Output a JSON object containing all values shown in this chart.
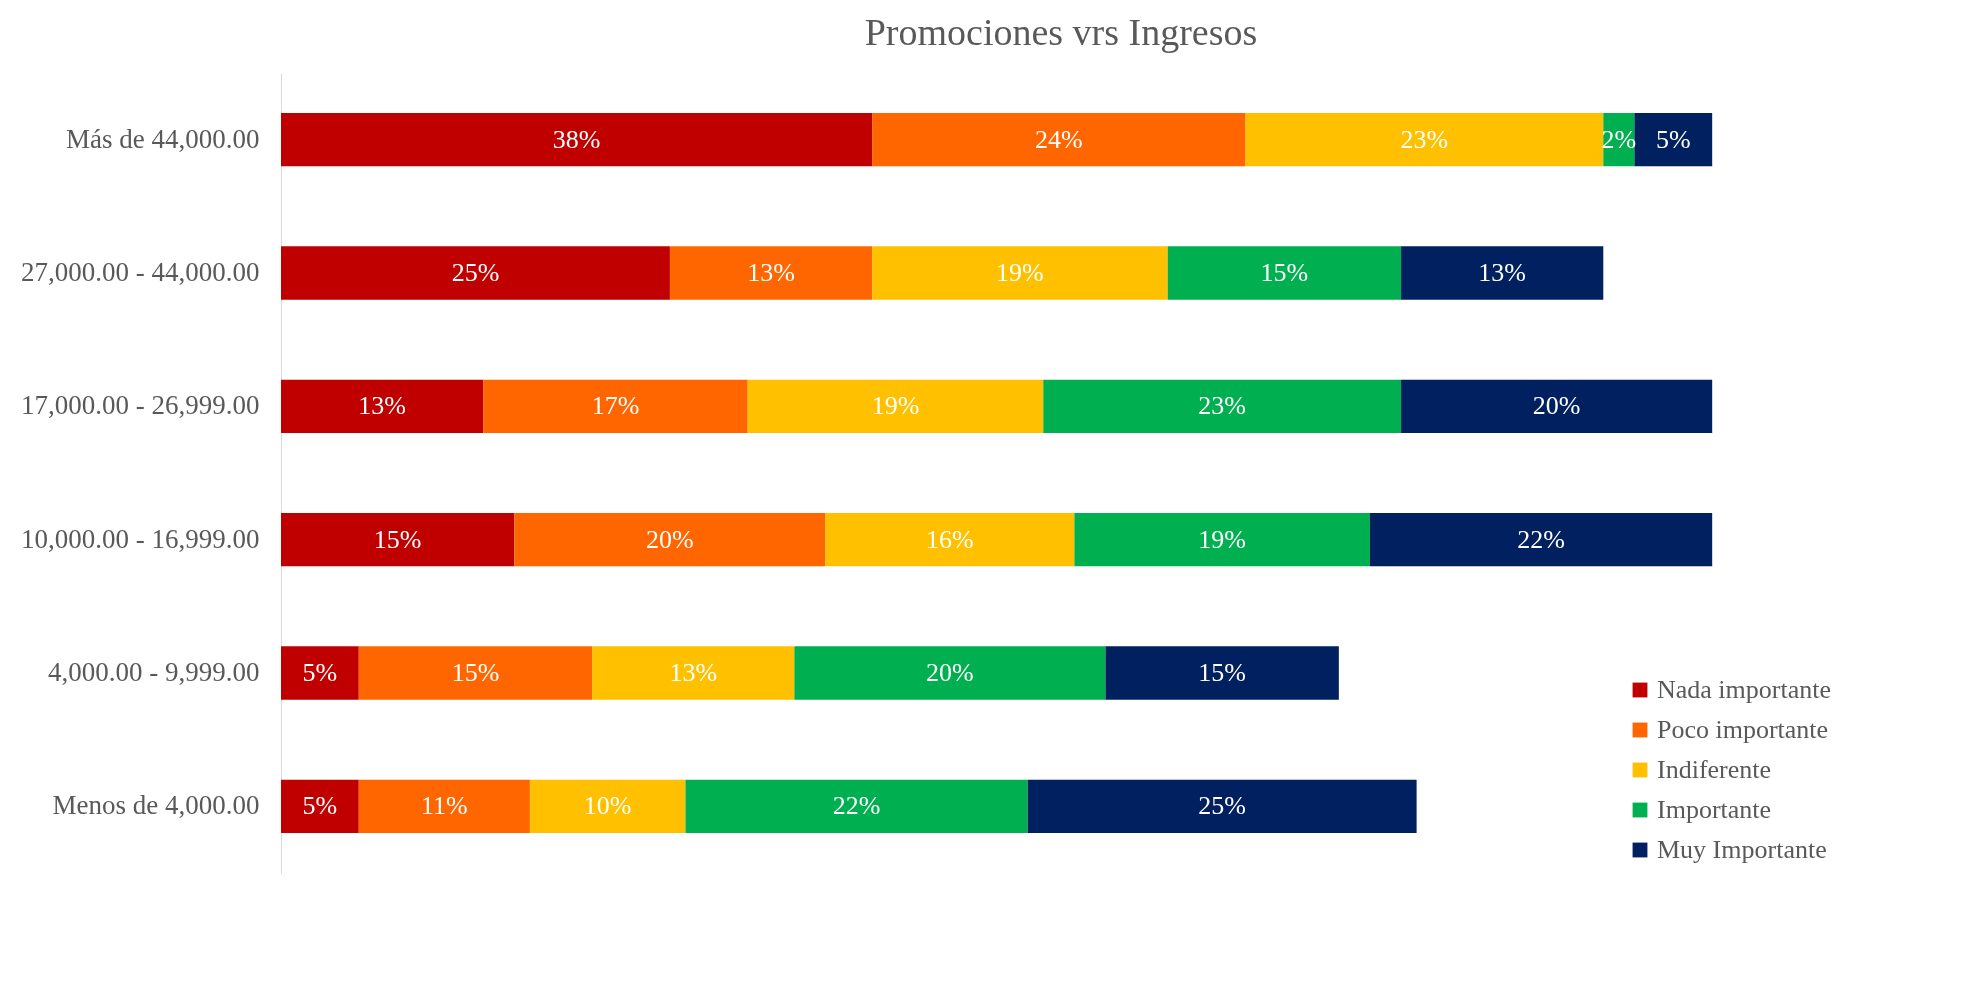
{
  "chart_data": {
    "type": "bar",
    "title": "Promociones vrs Ingresos",
    "orientation": "horizontal",
    "stacked": true,
    "legend": "bottom right",
    "tick_labels": "y",
    "categories": [
      "Más de 44,000.00",
      "27,000.00 - 44,000.00",
      "17,000.00 - 26,999.00",
      "10,000.00 - 16,999.00",
      "4,000.00 - 9,999.00",
      "Menos de 4,000.00"
    ],
    "series": [
      {
        "name": "Nada importante",
        "color": "#c00000",
        "values": [
          38,
          25,
          13,
          15,
          5,
          5
        ],
        "value_labels": [
          "38%",
          "25%",
          "13%",
          "15%",
          "5%",
          "5%"
        ]
      },
      {
        "name": "Poco importante",
        "color": "#ff6600",
        "values": [
          24,
          13,
          17,
          20,
          15,
          11
        ],
        "value_labels": [
          "24%",
          "13%",
          "17%",
          "20%",
          "15%",
          "11%"
        ]
      },
      {
        "name": "Indiferente",
        "color": "#ffc000",
        "values": [
          23,
          19,
          19,
          16,
          13,
          10
        ],
        "value_labels": [
          "23%",
          "19%",
          "19%",
          "16%",
          "13%",
          "10%"
        ]
      },
      {
        "name": "Importante",
        "color": "#00b050",
        "values": [
          2,
          15,
          23,
          19,
          20,
          22
        ],
        "value_labels": [
          "2%",
          "15%",
          "23%",
          "19%",
          "20%",
          "22%"
        ]
      },
      {
        "name": "Muy Importante",
        "color": "#002060",
        "values": [
          5,
          13,
          20,
          22,
          15,
          25
        ],
        "value_labels": [
          "5%",
          "13%",
          "20%",
          "22%",
          "15%",
          "25%"
        ]
      }
    ]
  }
}
